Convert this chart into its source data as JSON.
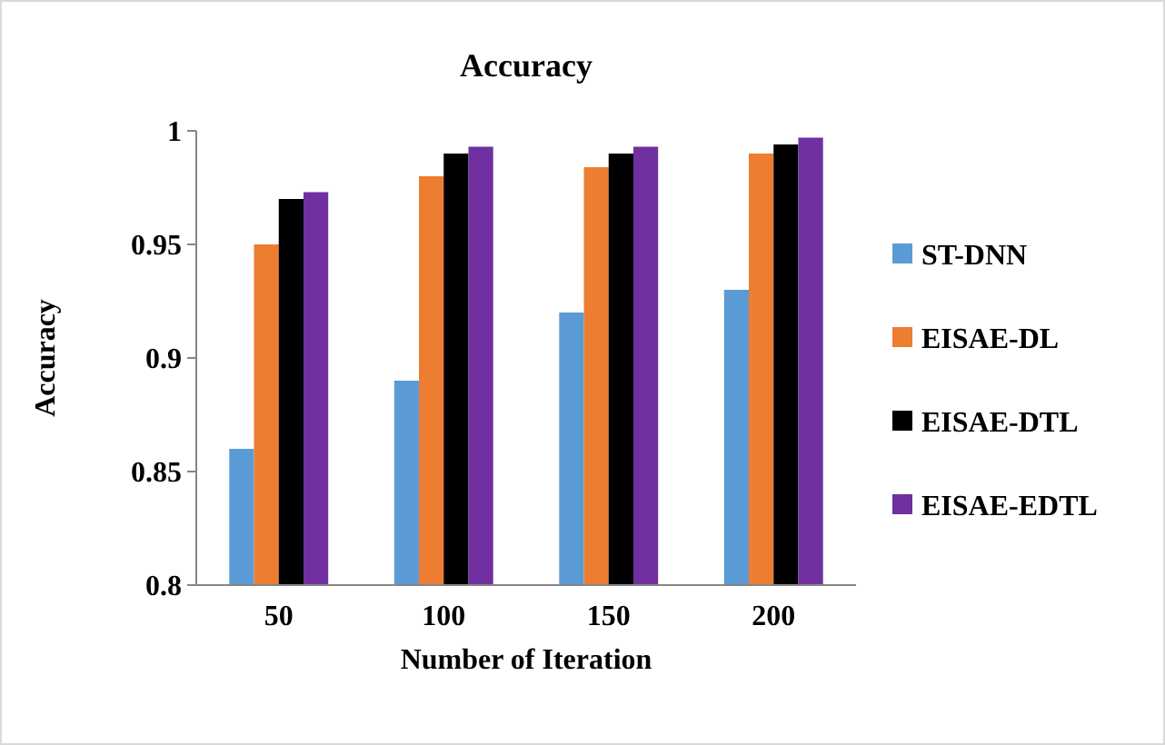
{
  "chart_data": {
    "type": "bar",
    "title": "Accuracy",
    "xlabel": "Number of Iteration",
    "ylabel": "Accuracy",
    "categories": [
      "50",
      "100",
      "150",
      "200"
    ],
    "series": [
      {
        "name": "ST-DNN",
        "color": "#5b9bd5",
        "values": [
          0.86,
          0.89,
          0.92,
          0.93
        ]
      },
      {
        "name": "EISAE-DL",
        "color": "#ed7d31",
        "values": [
          0.95,
          0.98,
          0.984,
          0.99
        ]
      },
      {
        "name": "EISAE-DTL",
        "color": "#000000",
        "values": [
          0.97,
          0.99,
          0.99,
          0.994
        ]
      },
      {
        "name": "EISAE-EDTL",
        "color": "#7030a0",
        "values": [
          0.973,
          0.993,
          0.993,
          0.997
        ]
      }
    ],
    "ylim": [
      0.8,
      1
    ],
    "yticks": [
      0.8,
      0.85,
      0.9,
      0.95,
      1
    ],
    "grid": false,
    "legend": "right"
  }
}
